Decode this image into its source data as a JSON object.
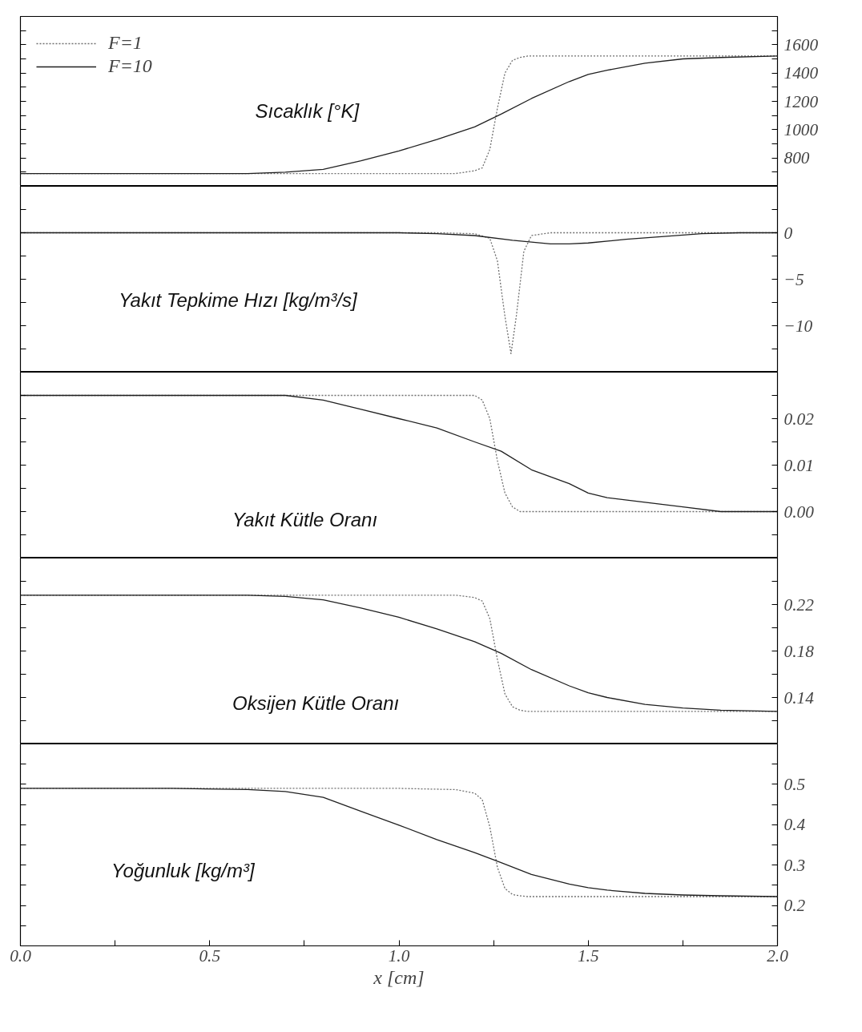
{
  "chart_data": [
    {
      "type": "line",
      "ylabel": "Sıcaklık  [°K]",
      "xlim": [
        0,
        2
      ],
      "ylim": [
        600,
        1800
      ],
      "tick_labels": "y",
      "legend": "top left",
      "yticks": [
        {
          "value": 700,
          "label": null
        },
        800,
        {
          "value": 900,
          "label": null
        },
        1000,
        {
          "value": 1100,
          "label": null
        },
        1200,
        {
          "value": 1300,
          "label": null
        },
        1400,
        {
          "value": 1500,
          "label": null
        },
        1600,
        {
          "value": 1700,
          "label": null
        }
      ],
      "series": [
        {
          "name": "F=1",
          "color": "#707070",
          "line_style": "dotted",
          "x": [
            0,
            0.5,
            1.0,
            1.15,
            1.2,
            1.22,
            1.24,
            1.26,
            1.28,
            1.3,
            1.32,
            1.34,
            1.4,
            1.6,
            2.0
          ],
          "values": [
            690,
            690,
            690,
            690,
            710,
            730,
            860,
            1150,
            1400,
            1490,
            1510,
            1520,
            1520,
            1520,
            1520
          ]
        },
        {
          "name": "F=10",
          "color": "#202020",
          "line_style": "solid",
          "x": [
            0,
            0.4,
            0.6,
            0.7,
            0.8,
            0.9,
            1.0,
            1.1,
            1.2,
            1.27,
            1.35,
            1.45,
            1.5,
            1.55,
            1.65,
            1.75,
            1.85,
            2.0
          ],
          "values": [
            690,
            690,
            690,
            700,
            720,
            780,
            850,
            930,
            1020,
            1110,
            1220,
            1340,
            1390,
            1420,
            1470,
            1500,
            1510,
            1520
          ]
        }
      ]
    },
    {
      "type": "line",
      "ylabel": "Yakıt Tepkime Hızı  [kg/m³/s]",
      "xlim": [
        0,
        2
      ],
      "ylim": [
        -15,
        5
      ],
      "tick_labels": "y",
      "yticks": [
        {
          "value": 2.5,
          "label": null
        },
        0,
        {
          "value": -2.5,
          "label": null
        },
        {
          "value": -5,
          "label": "−5"
        },
        {
          "value": -7.5,
          "label": null
        },
        {
          "value": -10,
          "label": "−10"
        },
        {
          "value": -12.5,
          "label": null
        }
      ],
      "series": [
        {
          "color": "#707070",
          "line_style": "dotted",
          "x": [
            0,
            1.0,
            1.1,
            1.2,
            1.24,
            1.26,
            1.28,
            1.296,
            1.31,
            1.33,
            1.35,
            1.4,
            2.0
          ],
          "values": [
            0,
            0,
            0,
            -0.1,
            -0.6,
            -3,
            -9,
            -13,
            -9,
            -2,
            -0.3,
            0,
            0
          ]
        },
        {
          "color": "#202020",
          "line_style": "solid",
          "x": [
            0,
            1.0,
            1.1,
            1.2,
            1.3,
            1.4,
            1.45,
            1.5,
            1.6,
            1.7,
            1.8,
            1.9,
            2.0
          ],
          "values": [
            0,
            0,
            -0.1,
            -0.3,
            -0.8,
            -1.2,
            -1.2,
            -1.1,
            -0.7,
            -0.4,
            -0.1,
            0,
            0
          ]
        }
      ]
    },
    {
      "type": "line",
      "ylabel": "Yakıt Kütle Oranı",
      "xlim": [
        0,
        2
      ],
      "ylim": [
        -0.01,
        0.03
      ],
      "tick_labels": "y",
      "yticks": [
        {
          "value": 0.025,
          "label": null
        },
        0.02,
        {
          "value": 0.015,
          "label": null
        },
        0.01,
        {
          "value": 0.005,
          "label": null
        },
        {
          "value": 0,
          "label": "0.00"
        },
        {
          "value": -0.005,
          "label": null
        }
      ],
      "series": [
        {
          "color": "#707070",
          "line_style": "dotted",
          "x": [
            0,
            0.5,
            1.0,
            1.15,
            1.2,
            1.22,
            1.24,
            1.26,
            1.28,
            1.3,
            1.32,
            1.34,
            1.4,
            1.6,
            2.0
          ],
          "values": [
            0.025,
            0.025,
            0.025,
            0.025,
            0.025,
            0.024,
            0.02,
            0.011,
            0.004,
            0.001,
            0.0,
            0,
            0,
            0,
            0
          ]
        },
        {
          "color": "#202020",
          "line_style": "solid",
          "x": [
            0,
            0.4,
            0.6,
            0.7,
            0.8,
            0.9,
            1.0,
            1.1,
            1.2,
            1.27,
            1.35,
            1.45,
            1.5,
            1.55,
            1.65,
            1.75,
            1.85,
            2.0
          ],
          "values": [
            0.025,
            0.025,
            0.025,
            0.025,
            0.024,
            0.022,
            0.02,
            0.018,
            0.015,
            0.013,
            0.009,
            0.006,
            0.004,
            0.003,
            0.002,
            0.001,
            0.0,
            0.0
          ]
        }
      ]
    },
    {
      "type": "line",
      "ylabel": "Oksijen Kütle Oranı",
      "xlim": [
        0,
        2
      ],
      "ylim": [
        0.1,
        0.26
      ],
      "tick_labels": "y",
      "yticks": [
        {
          "value": 0.24,
          "label": null
        },
        0.22,
        {
          "value": 0.2,
          "label": null
        },
        0.18,
        {
          "value": 0.16,
          "label": null
        },
        0.14,
        {
          "value": 0.12,
          "label": null
        }
      ],
      "series": [
        {
          "color": "#707070",
          "line_style": "dotted",
          "x": [
            0,
            0.5,
            1.0,
            1.15,
            1.2,
            1.22,
            1.24,
            1.26,
            1.28,
            1.3,
            1.32,
            1.34,
            1.4,
            1.6,
            2.0
          ],
          "values": [
            0.228,
            0.228,
            0.228,
            0.228,
            0.226,
            0.223,
            0.208,
            0.173,
            0.143,
            0.132,
            0.129,
            0.128,
            0.128,
            0.128,
            0.128
          ]
        },
        {
          "color": "#202020",
          "line_style": "solid",
          "x": [
            0,
            0.4,
            0.6,
            0.7,
            0.8,
            0.9,
            1.0,
            1.1,
            1.2,
            1.27,
            1.35,
            1.45,
            1.5,
            1.55,
            1.65,
            1.75,
            1.85,
            2.0
          ],
          "values": [
            0.228,
            0.228,
            0.228,
            0.227,
            0.224,
            0.217,
            0.209,
            0.199,
            0.188,
            0.178,
            0.164,
            0.15,
            0.144,
            0.14,
            0.134,
            0.131,
            0.129,
            0.128
          ]
        }
      ]
    },
    {
      "type": "line",
      "ylabel": "Yoğunluk    [kg/m³]",
      "xlabel": "x [cm]",
      "xlim": [
        0,
        2
      ],
      "ylim": [
        0.1,
        0.6
      ],
      "xticks": [
        {
          "value": 0,
          "label": "0.0"
        },
        {
          "value": 0.25,
          "label": null
        },
        0.5,
        {
          "value": 0.75,
          "label": null
        },
        {
          "value": 1,
          "label": "1.0"
        },
        {
          "value": 1.25,
          "label": null
        },
        1.5,
        {
          "value": 1.75,
          "label": null
        },
        {
          "value": 2,
          "label": "2.0"
        }
      ],
      "yticks": [
        {
          "value": 0.55,
          "label": null
        },
        0.5,
        {
          "value": 0.45,
          "label": null
        },
        0.4,
        {
          "value": 0.35,
          "label": null
        },
        0.3,
        {
          "value": 0.25,
          "label": null
        },
        0.2,
        {
          "value": 0.15,
          "label": null
        }
      ],
      "series": [
        {
          "color": "#707070",
          "line_style": "dotted",
          "x": [
            0,
            0.5,
            1.0,
            1.15,
            1.2,
            1.22,
            1.24,
            1.26,
            1.28,
            1.3,
            1.32,
            1.34,
            1.4,
            1.6,
            2.0
          ],
          "values": [
            0.49,
            0.49,
            0.49,
            0.487,
            0.478,
            0.462,
            0.395,
            0.295,
            0.242,
            0.227,
            0.224,
            0.222,
            0.222,
            0.222,
            0.222
          ]
        },
        {
          "color": "#202020",
          "line_style": "solid",
          "x": [
            0,
            0.4,
            0.6,
            0.7,
            0.8,
            0.9,
            1.0,
            1.1,
            1.2,
            1.27,
            1.35,
            1.45,
            1.5,
            1.55,
            1.65,
            1.75,
            1.85,
            2.0
          ],
          "values": [
            0.49,
            0.49,
            0.487,
            0.482,
            0.468,
            0.433,
            0.399,
            0.363,
            0.331,
            0.306,
            0.277,
            0.253,
            0.244,
            0.238,
            0.23,
            0.226,
            0.224,
            0.222
          ]
        }
      ]
    }
  ]
}
